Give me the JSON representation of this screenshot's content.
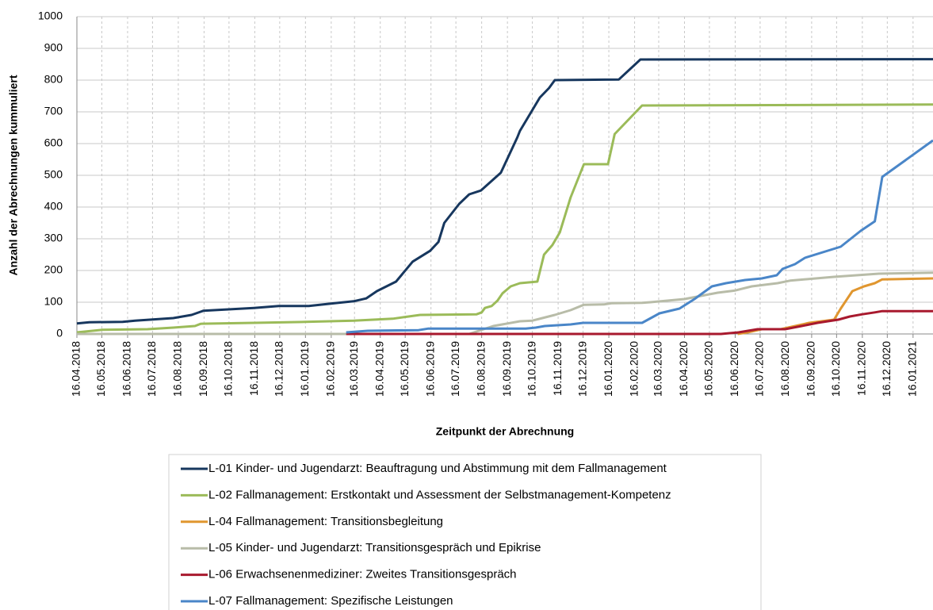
{
  "chart_data": {
    "type": "line",
    "xlabel": "Zeitpunkt der Abrechnung",
    "ylabel": "Anzahl der Abrechnungen kummuliert",
    "ylim": [
      0,
      1000
    ],
    "yticks": [
      0,
      100,
      200,
      300,
      400,
      500,
      600,
      700,
      800,
      900,
      1000
    ],
    "xlim": [
      "2018-04-16",
      "2021-02-09"
    ],
    "xticks": [
      {
        "value": "2018-04-16",
        "label": "16.04.2018"
      },
      {
        "value": "2018-05-16",
        "label": "16.05.2018"
      },
      {
        "value": "2018-06-16",
        "label": "16.06.2018"
      },
      {
        "value": "2018-07-16",
        "label": "16.07.2018"
      },
      {
        "value": "2018-08-16",
        "label": "16.08.2018"
      },
      {
        "value": "2018-09-16",
        "label": "16.09.2018"
      },
      {
        "value": "2018-10-16",
        "label": "16.10.2018"
      },
      {
        "value": "2018-11-16",
        "label": "16.11.2018"
      },
      {
        "value": "2018-12-16",
        "label": "16.12.2018"
      },
      {
        "value": "2019-01-16",
        "label": "16.01.2019"
      },
      {
        "value": "2019-02-16",
        "label": "16.02.2019"
      },
      {
        "value": "2019-03-16",
        "label": "16.03.2019"
      },
      {
        "value": "2019-04-16",
        "label": "16.04.2019"
      },
      {
        "value": "2019-05-16",
        "label": "16.05.2019"
      },
      {
        "value": "2019-06-16",
        "label": "16.06.2019"
      },
      {
        "value": "2019-07-16",
        "label": "16.07.2019"
      },
      {
        "value": "2019-08-16",
        "label": "16.08.2019"
      },
      {
        "value": "2019-09-16",
        "label": "16.09.2019"
      },
      {
        "value": "2019-10-16",
        "label": "16.10.2019"
      },
      {
        "value": "2019-11-16",
        "label": "16.11.2019"
      },
      {
        "value": "2019-12-16",
        "label": "16.12.2019"
      },
      {
        "value": "2020-01-16",
        "label": "16.01.2020"
      },
      {
        "value": "2020-02-16",
        "label": "16.02.2020"
      },
      {
        "value": "2020-03-16",
        "label": "16.03.2020"
      },
      {
        "value": "2020-04-16",
        "label": "16.04.2020"
      },
      {
        "value": "2020-05-16",
        "label": "16.05.2020"
      },
      {
        "value": "2020-06-16",
        "label": "16.06.2020"
      },
      {
        "value": "2020-07-16",
        "label": "16.07.2020"
      },
      {
        "value": "2020-08-16",
        "label": "16.08.2020"
      },
      {
        "value": "2020-09-16",
        "label": "16.09.2020"
      },
      {
        "value": "2020-10-16",
        "label": "16.10.2020"
      },
      {
        "value": "2020-11-16",
        "label": "16.11.2020"
      },
      {
        "value": "2020-12-16",
        "label": "16.12.2020"
      },
      {
        "value": "2021-01-16",
        "label": "16.01.2021"
      }
    ],
    "grid": true,
    "series": [
      {
        "name": "L-01 Kinder- und Jugendarzt: Beauftragung und Abstimmung mit dem Fallmanagement",
        "color": "#17375e",
        "x": [
          "2018-04-16",
          "2018-05-01",
          "2018-06-10",
          "2018-06-25",
          "2018-08-10",
          "2018-09-01",
          "2018-09-15",
          "2018-11-15",
          "2018-12-15",
          "2019-01-20",
          "2019-02-20",
          "2019-03-15",
          "2019-03-30",
          "2019-04-12",
          "2019-05-05",
          "2019-05-25",
          "2019-06-15",
          "2019-06-25",
          "2019-07-02",
          "2019-07-20",
          "2019-08-01",
          "2019-08-15",
          "2019-09-08",
          "2019-09-28",
          "2019-10-01",
          "2019-10-25",
          "2019-11-05",
          "2019-11-12",
          "2020-01-28",
          "2020-02-23",
          "2021-02-09"
        ],
        "values": [
          33,
          37,
          38,
          42,
          50,
          60,
          73,
          82,
          88,
          88,
          97,
          103,
          112,
          135,
          165,
          228,
          262,
          290,
          350,
          410,
          440,
          452,
          508,
          620,
          640,
          745,
          775,
          800,
          802,
          865,
          866
        ]
      },
      {
        "name": "L-02 Fallmanagement: Erstkontakt und Assessment der Selbstmanagement-Kompetenz",
        "color": "#9bbb59",
        "x": [
          "2018-04-16",
          "2018-05-16",
          "2018-07-10",
          "2018-08-10",
          "2018-09-05",
          "2018-09-12",
          "2018-11-15",
          "2019-01-16",
          "2019-03-15",
          "2019-05-01",
          "2019-05-20",
          "2019-06-03",
          "2019-08-10",
          "2019-08-16",
          "2019-08-20",
          "2019-08-28",
          "2019-09-04",
          "2019-09-10",
          "2019-09-20",
          "2019-10-01",
          "2019-10-22",
          "2019-10-30",
          "2019-11-09",
          "2019-11-18",
          "2019-12-01",
          "2019-12-17",
          "2020-01-15",
          "2020-01-23",
          "2020-02-25",
          "2021-02-09"
        ],
        "values": [
          5,
          13,
          15,
          20,
          25,
          32,
          35,
          38,
          42,
          48,
          55,
          60,
          62,
          68,
          82,
          88,
          105,
          128,
          150,
          160,
          165,
          250,
          280,
          320,
          430,
          535,
          535,
          630,
          720,
          723
        ]
      },
      {
        "name": "L-04 Fallmanagement: Transitionsbegleitung",
        "color": "#e0962f",
        "x": [
          "2020-06-19",
          "2020-07-01",
          "2020-07-18",
          "2020-08-10",
          "2020-09-13",
          "2020-10-13",
          "2020-10-21",
          "2020-11-04",
          "2020-11-18",
          "2020-12-01",
          "2020-12-10",
          "2021-02-09"
        ],
        "values": [
          0,
          5,
          15,
          15,
          35,
          45,
          80,
          135,
          150,
          160,
          172,
          175
        ]
      },
      {
        "name": "L-05 Kinder- und Jugendarzt: Transitionsgespräch und Epikrise",
        "color": "#b8bca8",
        "x": [
          "2018-04-16",
          "2019-08-01",
          "2019-08-30",
          "2019-10-01",
          "2019-10-16",
          "2019-10-28",
          "2019-11-12",
          "2019-12-01",
          "2019-12-17",
          "2020-01-10",
          "2020-01-20",
          "2020-02-25",
          "2020-03-06",
          "2020-04-16",
          "2020-05-26",
          "2020-06-16",
          "2020-07-06",
          "2020-08-06",
          "2020-08-21",
          "2020-10-13",
          "2020-12-06",
          "2021-02-09"
        ],
        "values": [
          0,
          0,
          25,
          40,
          42,
          50,
          60,
          75,
          92,
          93,
          97,
          98,
          100,
          110,
          130,
          137,
          150,
          160,
          168,
          180,
          190,
          193
        ]
      },
      {
        "name": "L-06 Erwachsenenmediziner: Zweites Transitionsgespräch",
        "color": "#a8192e",
        "x": [
          "2019-03-06",
          "2020-05-30",
          "2020-06-20",
          "2020-07-13",
          "2020-08-15",
          "2020-09-04",
          "2020-09-23",
          "2020-10-18",
          "2020-11-01",
          "2020-11-16",
          "2020-12-01",
          "2020-12-10",
          "2021-02-09"
        ],
        "values": [
          0,
          0,
          5,
          15,
          15,
          25,
          35,
          45,
          55,
          62,
          68,
          72,
          72
        ]
      },
      {
        "name": "L-07 Fallmanagement: Spezifische Leistungen",
        "color": "#4a86c8",
        "x": [
          "2019-03-06",
          "2019-04-01",
          "2019-06-01",
          "2019-06-13",
          "2019-10-08",
          "2019-10-20",
          "2019-10-31",
          "2019-12-01",
          "2019-12-16",
          "2020-02-25",
          "2020-03-17",
          "2020-04-10",
          "2020-04-28",
          "2020-05-19",
          "2020-06-05",
          "2020-06-28",
          "2020-07-18",
          "2020-08-05",
          "2020-08-12",
          "2020-08-27",
          "2020-09-08",
          "2020-10-21",
          "2020-11-14",
          "2020-12-01",
          "2020-12-10",
          "2021-02-09"
        ],
        "values": [
          5,
          10,
          12,
          17,
          17,
          20,
          25,
          30,
          35,
          35,
          65,
          80,
          110,
          150,
          160,
          170,
          175,
          185,
          205,
          220,
          240,
          275,
          325,
          355,
          495,
          610
        ]
      }
    ]
  }
}
